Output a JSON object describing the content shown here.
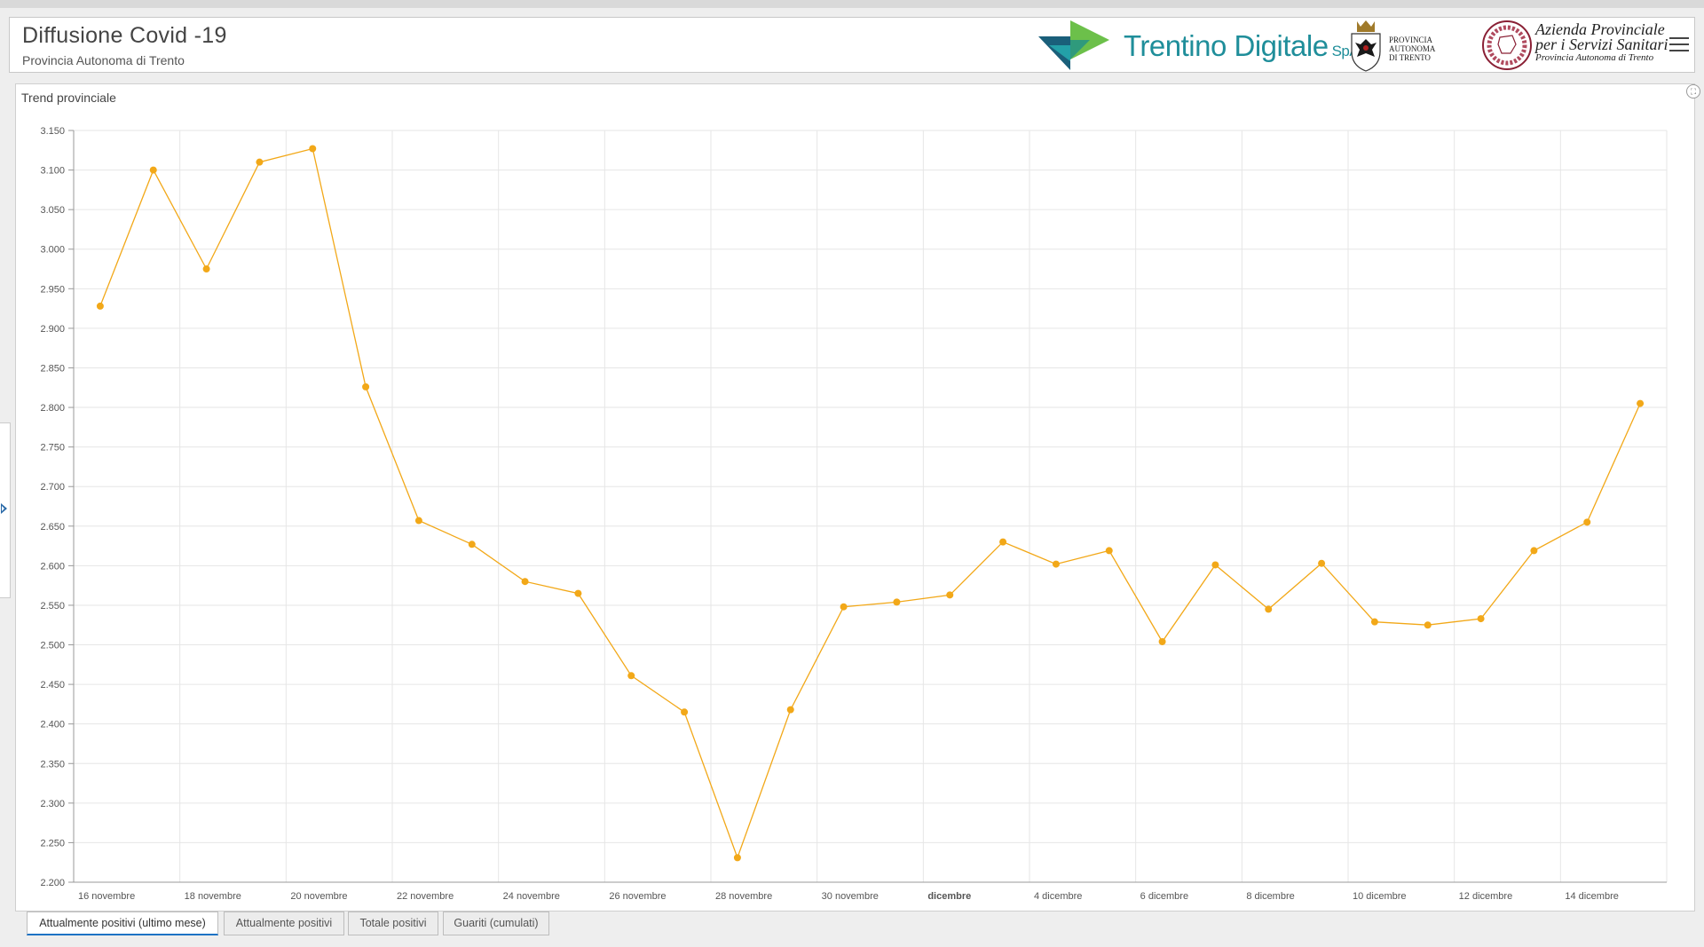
{
  "header": {
    "title": "Diffusione Covid -19",
    "subtitle": "Provincia Autonoma di Trento",
    "logos": {
      "trentino_digitale": "Trentino Digitale",
      "trentino_digitale_suffix": "SpA",
      "provincia_line1": "PROVINCIA AUTONOMA",
      "provincia_line2": "DI TRENTO",
      "apss_line1": "Azienda Provinciale",
      "apss_line2": "per i Servizi Sanitari",
      "apss_line3": "Provincia Autonoma di Trento"
    },
    "menu_icon": "hamburger-menu-icon"
  },
  "panel": {
    "title": "Trend provinciale"
  },
  "tabs": [
    {
      "label": "Attualmente positivi (ultimo mese)",
      "active": true
    },
    {
      "label": "Attualmente positivi",
      "active": false
    },
    {
      "label": "Totale positivi",
      "active": false
    },
    {
      "label": "Guariti (cumulati)",
      "active": false
    }
  ],
  "colors": {
    "series": "#f2a818",
    "tab_active_underline": "#1d73c4",
    "brand_teal": "#1f8e9a"
  },
  "chart_data": {
    "type": "line",
    "x_ticks": [
      "16 novembre",
      "18 novembre",
      "20 novembre",
      "22 novembre",
      "24 novembre",
      "26 novembre",
      "28 novembre",
      "30 novembre",
      "dicembre",
      "4 dicembre",
      "6 dicembre",
      "8 dicembre",
      "10 dicembre",
      "12 dicembre",
      "14 dicembre"
    ],
    "x_tick_bold": "dicembre",
    "x_dates": [
      "16 novembre",
      "17 novembre",
      "18 novembre",
      "19 novembre",
      "20 novembre",
      "21 novembre",
      "22 novembre",
      "23 novembre",
      "24 novembre",
      "25 novembre",
      "26 novembre",
      "27 novembre",
      "28 novembre",
      "29 novembre",
      "30 novembre",
      "1 dicembre",
      "2 dicembre",
      "3 dicembre",
      "4 dicembre",
      "5 dicembre",
      "6 dicembre",
      "7 dicembre",
      "8 dicembre",
      "9 dicembre",
      "10 dicembre",
      "11 dicembre",
      "12 dicembre",
      "13 dicembre",
      "14 dicembre",
      "15 dicembre"
    ],
    "values": [
      2928,
      3100,
      2975,
      3110,
      3127,
      2826,
      2657,
      2627,
      2580,
      2565,
      2461,
      2415,
      2231,
      2418,
      2548,
      2554,
      2563,
      2630,
      2602,
      2619,
      2504,
      2601,
      2545,
      2603,
      2529,
      2525,
      2533,
      2619,
      2655,
      2805
    ],
    "y_ticks": [
      "2.200",
      "2.250",
      "2.300",
      "2.350",
      "2.400",
      "2.450",
      "2.500",
      "2.550",
      "2.600",
      "2.650",
      "2.700",
      "2.750",
      "2.800",
      "2.850",
      "2.900",
      "2.950",
      "3.000",
      "3.050",
      "3.100",
      "3.150"
    ],
    "ylim": [
      2200,
      3150
    ],
    "grid": true,
    "legend": "none"
  }
}
